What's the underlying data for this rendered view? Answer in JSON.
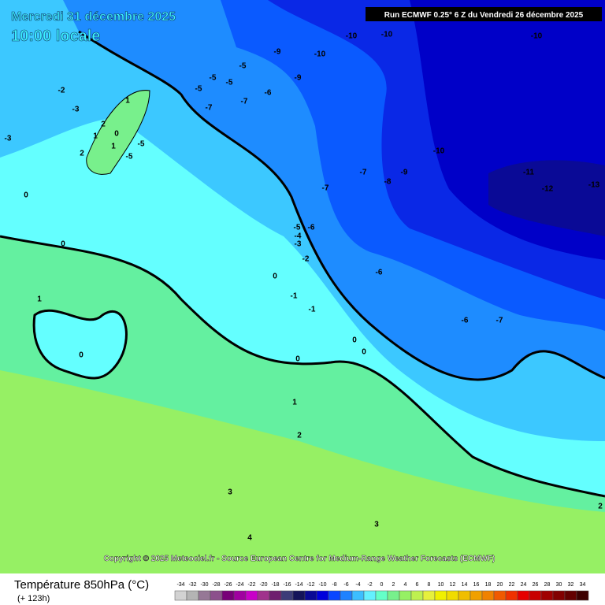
{
  "header": {
    "date": "Mercredi 31 décembre 2025",
    "time": "10:00 locale",
    "run": "Run ECMWF 0.25° 6 Z du Vendredi 26 décembre 2025"
  },
  "credit": "Copyright © 2025 Meteociel.fr - Source European Centre for Medium-Range Weather Forecasts (ECMWF)",
  "footer": {
    "title": "Température 850hPa (°C)",
    "lead": "(+ 123h)"
  },
  "contour_labels": [
    -10,
    -10,
    -10,
    -9,
    -10,
    -9,
    -5,
    -5,
    -5,
    -5,
    -6,
    -7,
    -7,
    -2,
    -3,
    -3,
    1,
    2,
    1,
    0,
    1,
    2,
    -5,
    -5,
    0,
    0,
    1,
    0,
    -10,
    -9,
    -11,
    -12,
    -13,
    -7,
    -7,
    -8,
    -5,
    -6,
    -4,
    -3,
    -2,
    -6,
    0,
    -1,
    -1,
    -6,
    -7,
    0,
    0,
    0,
    1,
    2,
    3,
    3,
    4,
    2
  ],
  "scale": {
    "values": [
      -34,
      -32,
      -30,
      -28,
      -26,
      -24,
      -22,
      -20,
      -18,
      -16,
      -14,
      -12,
      -10,
      -8,
      -6,
      -4,
      -2,
      0,
      2,
      4,
      6,
      8,
      10,
      12,
      14,
      16,
      18,
      20,
      22,
      24,
      26,
      28,
      30,
      32,
      34
    ],
    "colors": [
      "#d2d2d2",
      "#b4b4b4",
      "#967896",
      "#8c508c",
      "#780078",
      "#a000a0",
      "#c800c8",
      "#a0328c",
      "#6e1e6e",
      "#3c3c78",
      "#14145a",
      "#0a0a96",
      "#0000dc",
      "#0a46ff",
      "#1e82ff",
      "#3cbeff",
      "#64f0ff",
      "#64ffc8",
      "#78f08c",
      "#96f064",
      "#bef050",
      "#e6f03c",
      "#f0f000",
      "#f0dc00",
      "#f0be00",
      "#f0a000",
      "#f08200",
      "#f05a00",
      "#f03200",
      "#e60000",
      "#c80000",
      "#a00000",
      "#820000",
      "#640000",
      "#3c0000"
    ]
  }
}
